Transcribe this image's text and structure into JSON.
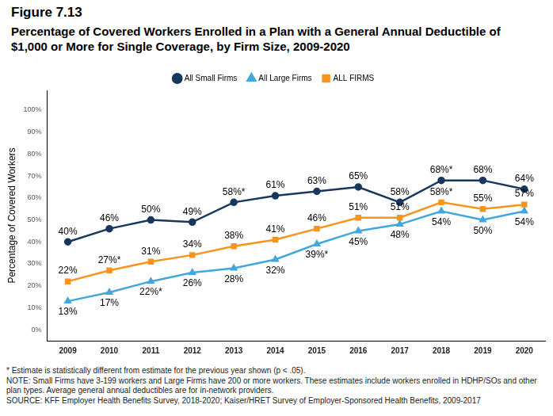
{
  "chart_data": {
    "type": "line",
    "title": "Figure 7.13",
    "subtitle": "Percentage of Covered Workers Enrolled in a Plan with a General Annual Deductible of $1,000 or More for Single Coverage, by Firm Size, 2009-2020",
    "y_label": "Percentage of Covered Workers",
    "categories": [
      "2009",
      "2010",
      "2011",
      "2012",
      "2013",
      "2014",
      "2015",
      "2016",
      "2017",
      "2018",
      "2019",
      "2020"
    ],
    "series": [
      {
        "name": "All Small Firms",
        "color": "#17375e",
        "marker": "circle",
        "values": [
          40,
          46,
          50,
          49,
          58,
          61,
          63,
          65,
          58,
          68,
          68,
          64
        ],
        "value_labels": [
          "40%",
          "46%",
          "50%",
          "49%",
          "58%*",
          "61%",
          "63%",
          "65%",
          "58%",
          "68%*",
          "68%",
          "64%"
        ]
      },
      {
        "name": "All Large Firms",
        "color": "#41a7dd",
        "marker": "triangle",
        "values": [
          13,
          17,
          22,
          26,
          28,
          32,
          39,
          45,
          48,
          54,
          50,
          54
        ],
        "value_labels": [
          "13%",
          "17%",
          "22%*",
          "26%",
          "28%",
          "32%",
          "39%*",
          "45%",
          "48%",
          "54%",
          "50%",
          "54%"
        ]
      },
      {
        "name": "ALL FIRMS",
        "color": "#f7941d",
        "marker": "square",
        "values": [
          22,
          27,
          31,
          34,
          38,
          41,
          46,
          51,
          51,
          58,
          55,
          57
        ],
        "value_labels": [
          "22%",
          "27%*",
          "31%",
          "34%",
          "38%",
          "41%",
          "46%",
          "51%",
          "51%",
          "58%*",
          "55%",
          "57%"
        ]
      }
    ],
    "ylim": [
      -5,
      109
    ],
    "yticks": [
      {
        "value": 0,
        "label": "0%"
      },
      {
        "value": 10,
        "label": "10%"
      },
      {
        "value": 20,
        "label": "20%"
      },
      {
        "value": 30,
        "label": "30%"
      },
      {
        "value": 40,
        "label": "40%"
      },
      {
        "value": 50,
        "label": "50%"
      },
      {
        "value": 60,
        "label": "60%"
      },
      {
        "value": 70,
        "label": "70%"
      },
      {
        "value": 80,
        "label": "80%"
      },
      {
        "value": 90,
        "label": "90%"
      },
      {
        "value": 100,
        "label": "100%"
      }
    ],
    "grid": false,
    "legend": "top",
    "data_labels": true,
    "annotations": [
      "* Estimate is statistically different from estimate for the previous year shown (p < .05).",
      "NOTE: Small Firms have 3-199 workers and Large Firms have 200 or more workers. These estimates include workers enrolled in HDHP/SOs and other plan types. Average general annual deductibles are for in-network providers.",
      "SOURCE: KFF Employer Health Benefits Survey, 2018-2020; Kaiser/HRET Survey of Employer-Sponsored Health Benefits, 2009-2017"
    ]
  }
}
